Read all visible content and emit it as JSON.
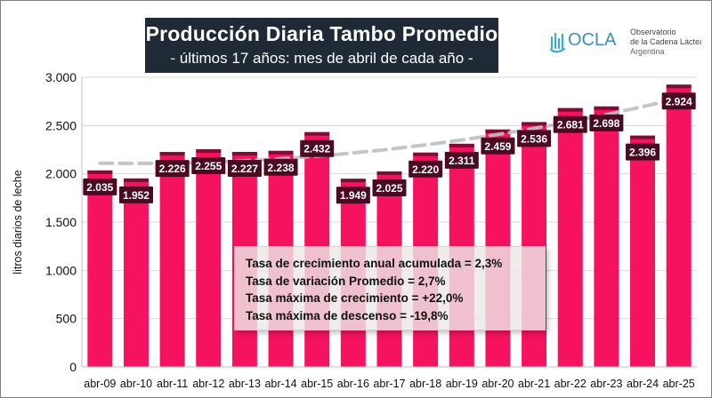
{
  "header": {
    "title": "Producción Diaria Tambo Promedio",
    "subtitle": "- últimos 17 años: mes de abril de cada año -"
  },
  "logo": {
    "name": "OCLA",
    "line1": "Observatorio",
    "line2": "de la Cadena Láctea",
    "line3": "Argentina",
    "icon": "milk-wave-icon",
    "color": "#3fa7d6"
  },
  "stats": {
    "line1": "Tasa de crecimiento anual acumulada = 2,3%",
    "line2": "Tasa de variación Promedio = 2,7%",
    "line3": "Tasa máxima de crecimiento = +22,0%",
    "line4": "Tasa máxima de descenso = -19,8%"
  },
  "colors": {
    "bar": "#f5135f",
    "bar_top": "#7a0f33",
    "label_bg": "#4a0a22",
    "trend": "#bfbfbf",
    "grid": "#d9d9d9"
  },
  "chart_data": {
    "type": "bar",
    "categories": [
      "abr-09",
      "abr-10",
      "abr-11",
      "abr-12",
      "abr-13",
      "abr-14",
      "abr-15",
      "abr-16",
      "abr-17",
      "abr-18",
      "abr-19",
      "abr-20",
      "abr-21",
      "abr-22",
      "abr-23",
      "abr-24",
      "abr-25"
    ],
    "values": [
      2035,
      1952,
      2226,
      2255,
      2227,
      2238,
      2432,
      1949,
      2025,
      2220,
      2311,
      2459,
      2536,
      2681,
      2698,
      2396,
      2924
    ],
    "value_labels": [
      "2.035",
      "1.952",
      "2.226",
      "2.255",
      "2.227",
      "2.238",
      "2.432",
      "1.949",
      "2.025",
      "2.220",
      "2.311",
      "2.459",
      "2.536",
      "2.681",
      "2.698",
      "2.396",
      "2.924"
    ],
    "ylabel": "litros diarios de leche",
    "ylim": [
      0,
      3000
    ],
    "yticks": [
      0,
      500,
      1000,
      1500,
      2000,
      2500,
      3000
    ],
    "ytick_labels": [
      "0",
      "500",
      "1.000",
      "1.500",
      "2.000",
      "2.500",
      "3.000"
    ],
    "grid": true,
    "trendline": {
      "type": "polynomial",
      "style": "dashed"
    }
  }
}
